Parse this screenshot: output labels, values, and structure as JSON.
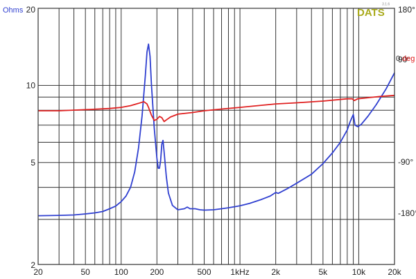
{
  "chart_data": {
    "type": "line",
    "title": "",
    "logo": "DATS",
    "logo_version": "3.1.6",
    "xlabel": "",
    "x_scale": "log",
    "xlim": [
      20,
      20000
    ],
    "x_tick_labels": [
      {
        "value": 20,
        "label": "20"
      },
      {
        "value": 50,
        "label": "50"
      },
      {
        "value": 100,
        "label": "100"
      },
      {
        "value": 200,
        "label": "200"
      },
      {
        "value": 500,
        "label": "500"
      },
      {
        "value": 1000,
        "label": "1kHz"
      },
      {
        "value": 2000,
        "label": "2k"
      },
      {
        "value": 5000,
        "label": "5k"
      },
      {
        "value": 10000,
        "label": "10k"
      },
      {
        "value": 20000,
        "label": "20k"
      }
    ],
    "x_minor_grid": [
      30,
      40,
      60,
      70,
      80,
      90,
      300,
      400,
      600,
      700,
      800,
      900,
      3000,
      4000,
      6000,
      7000,
      8000,
      9000
    ],
    "left_axis": {
      "label": "Ohms",
      "scale": "log",
      "ylim": [
        2,
        20
      ],
      "tick_labels": [
        {
          "value": 20,
          "label": "20"
        },
        {
          "value": 10,
          "label": "10"
        },
        {
          "value": 5,
          "label": "5"
        },
        {
          "value": 2,
          "label": "2"
        }
      ],
      "minor_grid": [
        3,
        4,
        6,
        7,
        8,
        9
      ]
    },
    "right_axis": {
      "label_value": "0",
      "label_unit": "deg",
      "ylim": [
        -270,
        180
      ],
      "tick_labels": [
        {
          "value": 180,
          "label": "180°"
        },
        {
          "value": 90,
          "label": "90°"
        },
        {
          "value": -90,
          "label": "-90°"
        },
        {
          "value": -180,
          "label": "-180°"
        }
      ]
    },
    "grid": true,
    "series": [
      {
        "name": "Ohms",
        "axis": "left",
        "color": "#2f3fd0",
        "points": [
          [
            20,
            3.1
          ],
          [
            30,
            3.11
          ],
          [
            40,
            3.12
          ],
          [
            50,
            3.15
          ],
          [
            60,
            3.18
          ],
          [
            70,
            3.22
          ],
          [
            80,
            3.3
          ],
          [
            90,
            3.38
          ],
          [
            100,
            3.52
          ],
          [
            110,
            3.7
          ],
          [
            120,
            4.0
          ],
          [
            130,
            4.6
          ],
          [
            140,
            5.7
          ],
          [
            150,
            7.6
          ],
          [
            160,
            11.0
          ],
          [
            165,
            13.5
          ],
          [
            170,
            14.5
          ],
          [
            175,
            13.0
          ],
          [
            180,
            10.0
          ],
          [
            190,
            6.8
          ],
          [
            200,
            5.2
          ],
          [
            205,
            4.75
          ],
          [
            210,
            4.75
          ],
          [
            215,
            5.1
          ],
          [
            220,
            5.9
          ],
          [
            225,
            6.1
          ],
          [
            230,
            5.5
          ],
          [
            240,
            4.4
          ],
          [
            250,
            3.8
          ],
          [
            270,
            3.4
          ],
          [
            300,
            3.27
          ],
          [
            340,
            3.3
          ],
          [
            360,
            3.35
          ],
          [
            380,
            3.3
          ],
          [
            420,
            3.3
          ],
          [
            460,
            3.27
          ],
          [
            500,
            3.26
          ],
          [
            600,
            3.27
          ],
          [
            700,
            3.3
          ],
          [
            800,
            3.33
          ],
          [
            1000,
            3.39
          ],
          [
            1200,
            3.46
          ],
          [
            1500,
            3.58
          ],
          [
            1800,
            3.7
          ],
          [
            2000,
            3.82
          ],
          [
            2100,
            3.79
          ],
          [
            2500,
            3.95
          ],
          [
            3000,
            4.15
          ],
          [
            4000,
            4.5
          ],
          [
            5000,
            4.95
          ],
          [
            6000,
            5.45
          ],
          [
            7000,
            6.0
          ],
          [
            8000,
            6.7
          ],
          [
            8500,
            7.25
          ],
          [
            9000,
            7.7
          ],
          [
            9300,
            7.0
          ],
          [
            9800,
            6.9
          ],
          [
            10500,
            7.05
          ],
          [
            12000,
            7.6
          ],
          [
            14000,
            8.4
          ],
          [
            17000,
            9.7
          ],
          [
            20000,
            11.2
          ]
        ]
      },
      {
        "name": "deg",
        "axis": "right",
        "color": "#e02020",
        "points": [
          [
            20,
            0
          ],
          [
            30,
            0
          ],
          [
            50,
            2
          ],
          [
            80,
            4
          ],
          [
            100,
            6
          ],
          [
            120,
            9
          ],
          [
            140,
            13
          ],
          [
            155,
            16
          ],
          [
            165,
            12
          ],
          [
            170,
            6
          ],
          [
            180,
            -8
          ],
          [
            190,
            -17
          ],
          [
            200,
            -15
          ],
          [
            210,
            -10
          ],
          [
            220,
            -12
          ],
          [
            230,
            -19
          ],
          [
            240,
            -16
          ],
          [
            260,
            -11
          ],
          [
            300,
            -6
          ],
          [
            400,
            -3
          ],
          [
            500,
            0
          ],
          [
            700,
            3
          ],
          [
            1000,
            6
          ],
          [
            2000,
            12
          ],
          [
            3000,
            14
          ],
          [
            5000,
            17
          ],
          [
            8000,
            21
          ],
          [
            8800,
            21
          ],
          [
            9200,
            18
          ],
          [
            9800,
            21
          ],
          [
            12000,
            23
          ],
          [
            15000,
            25
          ],
          [
            20000,
            27
          ]
        ]
      }
    ]
  }
}
